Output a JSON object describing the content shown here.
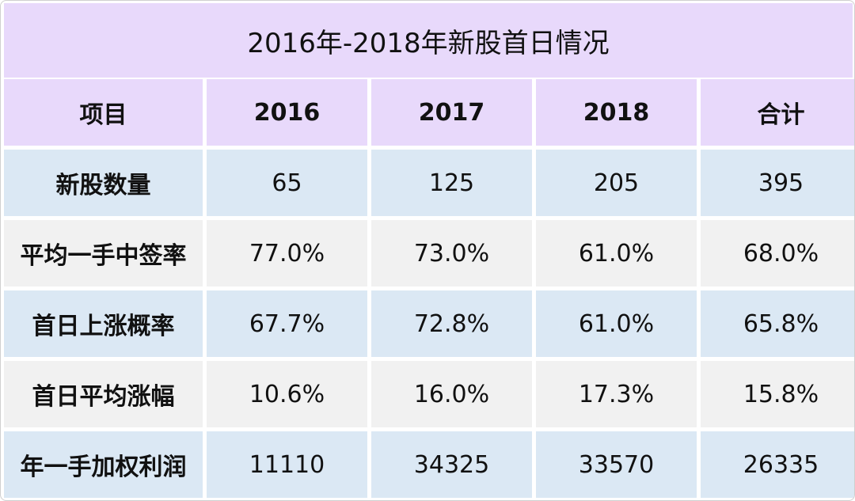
{
  "title": "2016年-2018年新股首日情况",
  "table": {
    "headers": [
      "项目",
      "2016",
      "2017",
      "2018",
      "合计"
    ],
    "rows": [
      {
        "label": "新股数量",
        "values": [
          "65",
          "125",
          "205",
          "395"
        ]
      },
      {
        "label": "平均一手中签率",
        "values": [
          "77.0%",
          "73.0%",
          "61.0%",
          "68.0%"
        ]
      },
      {
        "label": "首日上涨概率",
        "values": [
          "67.7%",
          "72.8%",
          "61.0%",
          "65.8%"
        ]
      },
      {
        "label": "首日平均涨幅",
        "values": [
          "10.6%",
          "16.0%",
          "17.3%",
          "15.8%"
        ]
      },
      {
        "label": "年一手加权利润",
        "values": [
          "11110",
          "34325",
          "33570",
          "26335"
        ]
      }
    ]
  },
  "colors": {
    "header_bg": "#e8d9fb",
    "row_blue": "#dbe8f4",
    "row_gray": "#f1f1f1"
  }
}
